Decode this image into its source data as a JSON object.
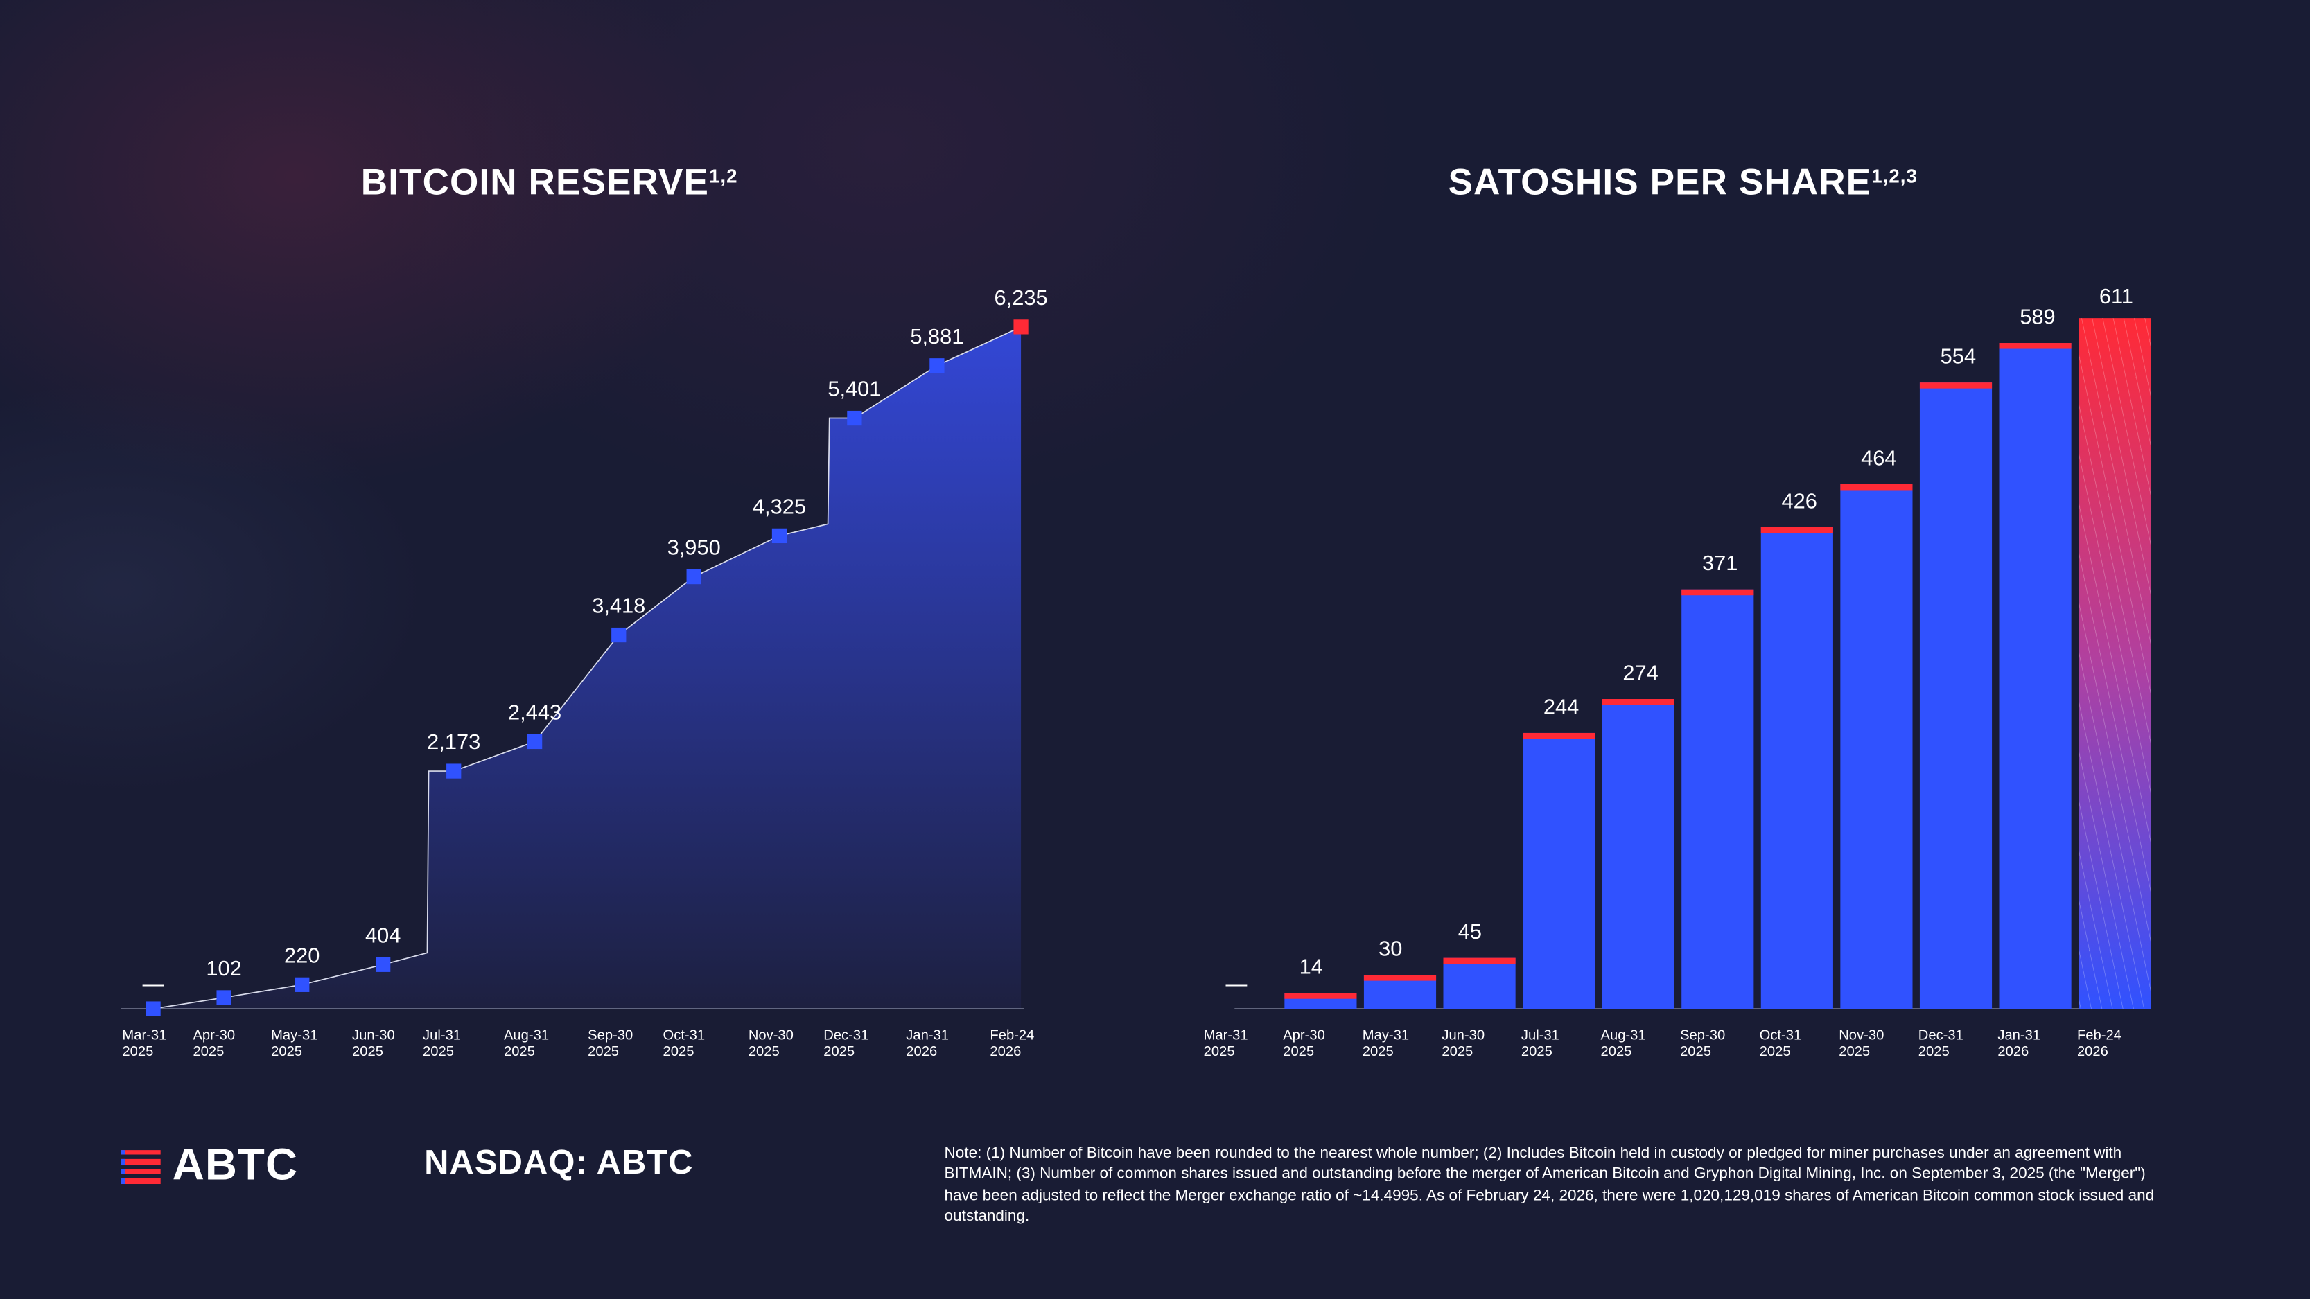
{
  "colors": {
    "background": "#191c34",
    "bar_blue": "#3052ff",
    "accent_red": "#ff2a36",
    "area_top": "#3347d6",
    "area_bottom": "#1d2040",
    "line": "#d9dcec"
  },
  "chart_data": [
    {
      "type": "area",
      "title": "BITCOIN RESERVE",
      "title_sup": "1,2",
      "categories": [
        [
          "Mar-31",
          "2025"
        ],
        [
          "Apr-30",
          "2025"
        ],
        [
          "May-31",
          "2025"
        ],
        [
          "Jun-30",
          "2025"
        ],
        [
          "Jul-31",
          "2025"
        ],
        [
          "Aug-31",
          "2025"
        ],
        [
          "Sep-30",
          "2025"
        ],
        [
          "Oct-31",
          "2025"
        ],
        [
          "Nov-30",
          "2025"
        ],
        [
          "Dec-31",
          "2025"
        ],
        [
          "Jan-31",
          "2026"
        ],
        [
          "Feb-24",
          "2026"
        ]
      ],
      "values": [
        0,
        102,
        220,
        404,
        2173,
        2443,
        3418,
        3950,
        4325,
        5401,
        5881,
        6235
      ],
      "labels": [
        "—",
        "102",
        "220",
        "404",
        "2,173",
        "2,443",
        "3,418",
        "3,950",
        "4,325",
        "5,401",
        "5,881",
        "6,235"
      ],
      "ylim": [
        0,
        6235
      ],
      "highlight_last": true,
      "grid": false
    },
    {
      "type": "bar",
      "title": "SATOSHIS PER SHARE",
      "title_sup": "1,2,3",
      "categories": [
        [
          "Mar-31",
          "2025"
        ],
        [
          "Apr-30",
          "2025"
        ],
        [
          "May-31",
          "2025"
        ],
        [
          "Jun-30",
          "2025"
        ],
        [
          "Jul-31",
          "2025"
        ],
        [
          "Aug-31",
          "2025"
        ],
        [
          "Sep-30",
          "2025"
        ],
        [
          "Oct-31",
          "2025"
        ],
        [
          "Nov-30",
          "2025"
        ],
        [
          "Dec-31",
          "2025"
        ],
        [
          "Jan-31",
          "2026"
        ],
        [
          "Feb-24",
          "2026"
        ]
      ],
      "values": [
        0,
        14,
        30,
        45,
        244,
        274,
        371,
        426,
        464,
        554,
        589,
        611
      ],
      "labels": [
        "—",
        "14",
        "30",
        "45",
        "244",
        "274",
        "371",
        "426",
        "464",
        "554",
        "589",
        "611"
      ],
      "ylim": [
        0,
        611
      ],
      "highlight_last": true,
      "grid": false
    }
  ],
  "footer": {
    "logo": "ABTC",
    "ticker": "NASDAQ: ABTC",
    "note": "Note: (1) Number of Bitcoin have been rounded to the nearest whole number; (2) Includes Bitcoin held in custody or pledged for miner purchases under an agreement with BITMAIN; (3) Number of common shares issued and outstanding before the merger of American Bitcoin and Gryphon Digital Mining, Inc. on September 3, 2025 (the \"Merger\") have been adjusted to reflect the Merger exchange ratio of ~14.4995. As of February 24, 2026, there were 1,020,129,019 shares of American Bitcoin common stock issued and outstanding."
  }
}
